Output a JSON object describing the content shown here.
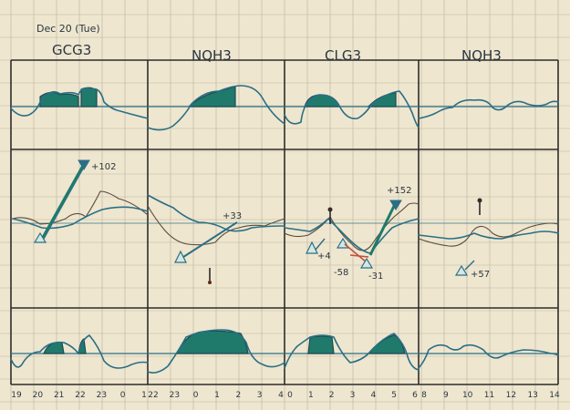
{
  "header": {
    "date_label": "Dec 20 (Tue)"
  },
  "panels": [
    {
      "title": "GCG3"
    },
    {
      "title": "NQH3"
    },
    {
      "title": "CLG3"
    },
    {
      "title": "NQH3"
    }
  ],
  "annotations": {
    "gcg3_trade": "+102",
    "nqh3_trade": "+33",
    "clg3_entry1": "+4",
    "clg3_loss": "-58",
    "clg3_stop": "-31",
    "clg3_trade": "+152",
    "nqh3b_trade": "+57"
  },
  "time_axis": {
    "panel1": [
      "19",
      "20",
      "21",
      "22",
      "23",
      "0",
      "1"
    ],
    "panel2": [
      "22",
      "23",
      "0",
      "1",
      "2",
      "3",
      "4"
    ],
    "panel3": [
      "0",
      "1",
      "2",
      "3",
      "4",
      "5",
      "6"
    ],
    "panel4": [
      "8",
      "9",
      "10",
      "11",
      "12",
      "13",
      "14"
    ]
  },
  "colors": {
    "paper": "#efe6cf",
    "grid": "#b9b3a0",
    "ink_blue": "#2a6f86",
    "ink_teal": "#1f7a6c",
    "ink_brown": "#5b4b3e",
    "ink_red": "#c0503a"
  }
}
